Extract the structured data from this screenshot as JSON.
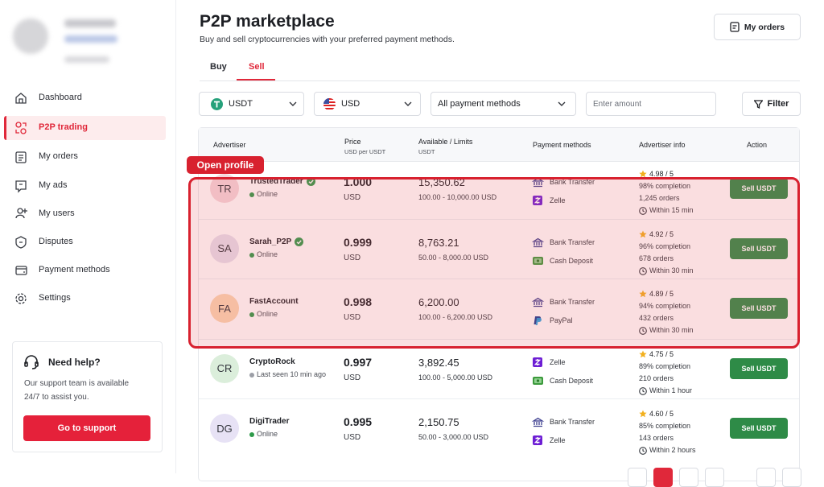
{
  "profile": {},
  "nav": [
    "Dashboard",
    "P2P trading",
    "My orders",
    "My ads",
    "My users",
    "Disputes",
    "Payment methods",
    "Settings"
  ],
  "help": {
    "title": "Need help?",
    "text": "Our support team is available 24/7 to assist you.",
    "button": "Go to support"
  },
  "header": {
    "title": "P2P marketplace",
    "subtitle": "Buy and sell cryptocurrencies with your preferred payment methods.",
    "my_orders": "My orders"
  },
  "tabs": [
    "Buy",
    "Sell"
  ],
  "filters": {
    "coin": "USDT",
    "currency": "USD",
    "payment": "All payment methods",
    "amount_placeholder": "Enter amount",
    "filter": "Filter"
  },
  "annotation": "Open profile",
  "table": {
    "headers": [
      "Advertiser",
      "Price",
      "Available / Limits",
      "Payment methods",
      "Advertiser info",
      "Action"
    ],
    "price_unit": "USD per USDT",
    "available_unit": "USDT",
    "rows": [
      {
        "initials": "TR",
        "name": "TrustedTrader",
        "verified": true,
        "status": "Online",
        "price": "1.000",
        "currency": "USD",
        "available": "15,350.62",
        "limits": "100.00 - 10,000.00 USD",
        "payments": [
          "Bank Transfer",
          "Zelle"
        ],
        "rating": "4.98 / 5",
        "completion": "98% completion",
        "orders": "1,245 orders",
        "time": "Within 15 min",
        "action": "Sell USDT"
      },
      {
        "initials": "SA",
        "name": "Sarah_P2P",
        "verified": true,
        "status": "Online",
        "price": "0.999",
        "currency": "USD",
        "available": "8,763.21",
        "limits": "50.00 - 8,000.00 USD",
        "payments": [
          "Bank Transfer",
          "Cash Deposit"
        ],
        "rating": "4.92 / 5",
        "completion": "96% completion",
        "orders": "678 orders",
        "time": "Within 30 min",
        "action": "Sell USDT"
      },
      {
        "initials": "FA",
        "name": "FastAccount",
        "verified": false,
        "status": "Online",
        "price": "0.998",
        "currency": "USD",
        "available": "6,200.00",
        "limits": "100.00 - 6,200.00 USD",
        "payments": [
          "Bank Transfer",
          "PayPal"
        ],
        "rating": "4.89 / 5",
        "completion": "94% completion",
        "orders": "432 orders",
        "time": "Within 30 min",
        "action": "Sell USDT"
      },
      {
        "initials": "CR",
        "name": "CryptoRock",
        "verified": false,
        "status": "Last seen 10 min ago",
        "price": "0.997",
        "currency": "USD",
        "available": "3,892.45",
        "limits": "100.00 - 5,000.00 USD",
        "payments": [
          "Zelle",
          "Cash Deposit"
        ],
        "rating": "4.75 / 5",
        "completion": "89% completion",
        "orders": "210 orders",
        "time": "Within 1 hour",
        "action": "Sell USDT"
      },
      {
        "initials": "DG",
        "name": "DigiTrader",
        "verified": false,
        "status": "Online",
        "price": "0.995",
        "currency": "USD",
        "available": "2,150.75",
        "limits": "50.00 - 3,000.00 USD",
        "payments": [
          "Bank Transfer",
          "Zelle"
        ],
        "rating": "4.60 / 5",
        "completion": "85% completion",
        "orders": "143 orders",
        "time": "Within 2 hours",
        "action": "Sell USDT"
      }
    ]
  }
}
